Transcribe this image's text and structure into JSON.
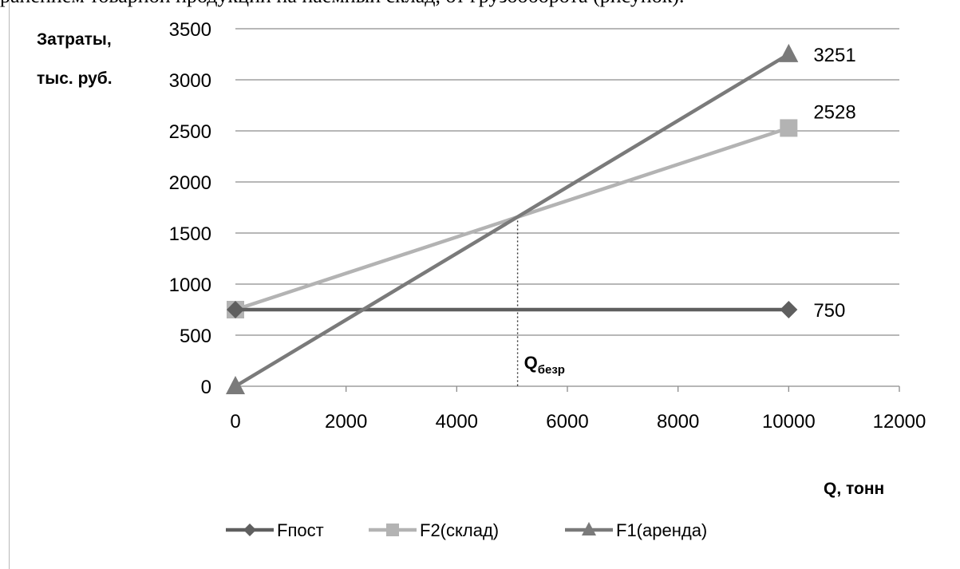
{
  "header_text": "ранением товарной продукции на наемный склад, от грузооборота (рисунок).",
  "chart_data": {
    "type": "line",
    "ylabel_line1": "Затраты,",
    "ylabel_line2": "тыс. руб.",
    "xlabel": "Q, тонн",
    "xlim": [
      0,
      12000
    ],
    "ylim": [
      0,
      3500
    ],
    "xticks": [
      0,
      2000,
      4000,
      6000,
      8000,
      10000,
      12000
    ],
    "yticks": [
      0,
      500,
      1000,
      1500,
      2000,
      2500,
      3000,
      3500
    ],
    "grid": "horizontal",
    "legend_position": "bottom",
    "series": [
      {
        "name": "Fпост",
        "color": "#5f5f5f",
        "marker": "diamond",
        "x": [
          0,
          10000
        ],
        "y": [
          750,
          750
        ],
        "end_label": "750"
      },
      {
        "name": "F2(склад)",
        "color": "#b3b3b3",
        "marker": "square",
        "x": [
          0,
          10000
        ],
        "y": [
          750,
          2528
        ],
        "end_label": "2528"
      },
      {
        "name": "F1(аренда)",
        "color": "#7a7a7a",
        "marker": "triangle",
        "x": [
          0,
          10000
        ],
        "y": [
          0,
          3251
        ],
        "end_label": "3251"
      }
    ],
    "annotation": {
      "main": "Q",
      "sub": "безр",
      "x": 5100,
      "y": 1660
    }
  }
}
